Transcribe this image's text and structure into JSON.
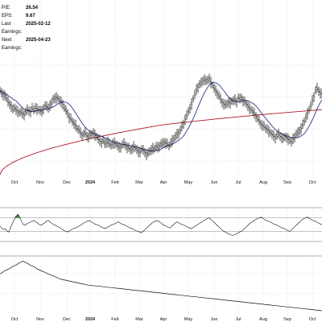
{
  "stats": [
    {
      "label": "P/E:",
      "value": "26.54"
    },
    {
      "label": "EPS:",
      "value": "9.67"
    },
    {
      "label": "Last Earnings:",
      "value": "2025-02-12"
    },
    {
      "label": "Next Earnings:",
      "value": "2025-04-23"
    }
  ],
  "chart_data": {
    "type": "line",
    "panels": [
      "price",
      "oscillator",
      "relative-strength"
    ],
    "x_tick_labels": [
      "Oct",
      "Nov",
      "Dec",
      "2024",
      "Feb",
      "Mar",
      "Apr",
      "May",
      "Jun",
      "Jul",
      "Aug",
      "Sep",
      "Oct"
    ],
    "grid": true,
    "price_panel": {
      "series": [
        {
          "values": [
            55,
            52,
            49,
            50,
            45,
            40,
            38,
            35,
            30,
            33,
            30,
            28,
            26,
            27,
            25,
            24,
            27,
            30,
            29,
            28,
            32,
            30,
            33,
            31,
            30,
            29,
            28,
            32,
            35,
            34,
            33,
            36,
            38,
            44,
            45,
            46,
            45,
            42,
            40,
            38,
            32,
            29,
            26,
            20,
            18,
            15,
            12,
            10,
            5,
            4,
            0,
            -3,
            -2,
            0,
            -4,
            -5,
            -3,
            -2,
            0,
            -3,
            -5,
            -8,
            -10,
            -12,
            -10,
            -14,
            -13,
            -11,
            -15,
            -16,
            -14,
            -13,
            -15,
            -17,
            -19,
            -18,
            -16,
            -14,
            -16,
            -19,
            -20,
            -22,
            -21,
            -18,
            -20,
            -22,
            -25,
            -24,
            -22,
            -23,
            -25,
            -28,
            -27,
            -24,
            -22,
            -20,
            -21,
            -18,
            -19,
            -17,
            -15,
            -14,
            -12,
            -13,
            -15,
            -17,
            -13,
            -10,
            -8,
            -5,
            -2,
            0,
            3,
            8,
            12,
            18,
            22,
            28,
            32,
            38,
            44,
            50,
            56,
            60,
            63,
            65,
            68,
            70,
            67,
            69,
            71,
            66,
            62,
            58,
            55,
            52,
            48,
            44,
            40,
            38,
            36,
            38,
            40,
            39,
            41,
            42,
            43,
            41,
            45,
            44,
            46,
            42,
            40,
            38,
            35,
            32,
            30,
            28,
            25,
            22,
            18,
            15,
            12,
            10,
            8,
            6,
            5,
            2,
            0,
            -2,
            -4,
            -6,
            -4,
            -2,
            -4,
            -6,
            -8,
            -5,
            -6,
            -8,
            -10,
            -12,
            -8,
            -5,
            -2,
            0,
            3,
            6,
            10,
            15,
            20,
            25,
            30,
            35,
            42,
            48,
            55,
            58,
            55,
            52,
            50
          ]
        },
        {
          "values": [
            60,
            58,
            56,
            54,
            52,
            50,
            48,
            46,
            44,
            42,
            40,
            38,
            36,
            34,
            32,
            30,
            29,
            28,
            27,
            26,
            25,
            24,
            23,
            22,
            21,
            20,
            19,
            18,
            17,
            16,
            15,
            14,
            13,
            12,
            11,
            10,
            9,
            8,
            7,
            6,
            5,
            4,
            3,
            2,
            1,
            0,
            -1,
            -2,
            -3,
            -4,
            -4,
            -5,
            -5,
            -6,
            -6,
            -7,
            -7,
            -7,
            -8,
            -8,
            -8,
            -9,
            -9,
            -9,
            -10,
            -10,
            -10,
            -11,
            -11,
            -11,
            -12,
            -12,
            -12,
            -13,
            -13,
            -13,
            -14,
            -14,
            -14,
            -15,
            -15,
            -15,
            -16,
            -16,
            -16,
            -17,
            -17,
            -17,
            -18,
            -18,
            -18,
            -18,
            -19,
            -19,
            -19,
            -19,
            -19,
            -19,
            -20,
            -20,
            -20,
            -20,
            -20,
            -20,
            -20,
            -20,
            -20,
            -20,
            -20,
            -20,
            -20,
            -19,
            -19,
            -19,
            -18,
            -18,
            -18,
            -17,
            -17,
            -16,
            -16,
            -15,
            -14,
            -13,
            -12,
            -11,
            -10,
            -9,
            -8,
            -7,
            -6,
            -5,
            -4,
            -3,
            -2,
            -1,
            0,
            1,
            2,
            3,
            4,
            5,
            6,
            7,
            8,
            9,
            10,
            11,
            12,
            13,
            14,
            15,
            16,
            17,
            18,
            19,
            20,
            21,
            22,
            23,
            24,
            25,
            26,
            27,
            28,
            29,
            30,
            31,
            32,
            33,
            34,
            35,
            36,
            37,
            38,
            39,
            40,
            41,
            42,
            43,
            44,
            45,
            46,
            47,
            48,
            49,
            50,
            51,
            52,
            53,
            54,
            55,
            56,
            57,
            58,
            59,
            60,
            61,
            62
          ]
        }
      ]
    },
    "oscillator_panel": {
      "ylim": [
        0,
        100
      ],
      "reference_lines": [
        30,
        70
      ],
      "values": [
        45,
        40,
        35,
        38,
        30,
        28,
        42,
        55,
        65,
        75,
        80,
        72,
        60,
        50,
        48,
        52,
        55,
        58,
        60,
        62,
        58,
        55,
        50,
        48,
        52,
        55,
        60,
        62,
        58,
        54,
        50,
        48,
        45,
        42,
        40,
        35,
        32,
        30,
        28,
        32,
        35,
        38,
        40,
        42,
        45,
        48,
        52,
        55,
        58,
        60,
        62,
        58,
        55,
        52,
        50,
        48,
        45,
        42,
        40,
        38,
        42,
        45,
        48,
        50,
        52,
        55,
        58,
        55,
        52,
        50,
        48,
        45,
        42,
        40,
        38,
        35,
        32,
        30,
        28,
        26,
        30,
        35,
        40,
        45,
        50,
        55,
        58,
        60,
        62,
        58,
        55,
        50,
        48,
        45,
        42,
        40,
        45,
        50,
        55,
        58,
        55,
        52,
        50,
        48,
        45,
        42,
        40,
        38,
        42,
        45,
        48,
        52,
        55,
        58,
        62,
        65,
        68,
        70,
        65,
        60,
        55,
        50,
        45,
        40,
        35,
        30,
        28,
        25,
        22,
        20,
        18,
        20,
        22,
        25,
        28,
        30,
        35,
        40,
        45,
        50,
        55,
        58,
        62,
        65,
        68,
        70,
        72,
        68,
        65,
        62,
        60,
        58,
        55,
        52,
        50,
        48,
        45,
        42,
        40,
        38,
        35,
        32,
        30,
        35,
        40,
        45,
        50,
        55,
        60,
        65,
        68,
        70,
        72,
        68,
        65,
        62,
        60,
        58,
        55,
        52,
        50
      ]
    },
    "rs_panel": {
      "values": [
        40,
        42,
        45,
        48,
        50,
        52,
        55,
        58,
        60,
        62,
        65,
        68,
        70,
        72,
        70,
        68,
        65,
        62,
        60,
        58,
        55,
        52,
        50,
        48,
        46,
        44,
        42,
        40,
        38,
        36,
        34,
        32,
        30,
        28,
        26,
        25,
        24,
        23,
        22,
        21,
        20,
        19,
        18,
        17,
        16,
        15,
        14,
        13,
        12,
        11,
        10,
        10,
        9,
        9,
        8,
        8,
        7,
        7,
        6,
        6,
        5,
        5,
        4,
        4,
        3,
        3,
        2,
        2,
        1,
        1,
        0,
        0,
        -1,
        -1,
        -2,
        -2,
        -3,
        -3,
        -4,
        -4,
        -5,
        -5,
        -6,
        -6,
        -7,
        -7,
        -8,
        -8,
        -9,
        -9,
        -10,
        -10,
        -11,
        -11,
        -12,
        -12,
        -13,
        -13,
        -14,
        -14,
        -15,
        -15,
        -16,
        -16,
        -17,
        -17,
        -18,
        -18,
        -19,
        -19,
        -20,
        -20,
        -21,
        -21,
        -22,
        -22,
        -23,
        -23,
        -24,
        -24,
        -25,
        -25,
        -26,
        -26,
        -27,
        -27,
        -28,
        -28,
        -29,
        -29,
        -30,
        -30,
        -31,
        -31,
        -32,
        -32,
        -33,
        -33,
        -34,
        -34,
        -35,
        -35,
        -36,
        -36,
        -37,
        -37,
        -38,
        -38,
        -39,
        -39,
        -40,
        -40,
        -41,
        -41,
        -42,
        -42,
        -43,
        -43,
        -44,
        -44,
        -45,
        -45,
        -46,
        -46,
        -47,
        -47,
        -48,
        -48,
        -49,
        -49,
        -50,
        -50,
        -51,
        -51,
        -52,
        -52,
        -53,
        -53,
        -54,
        -54,
        -55,
        -55,
        -56
      ]
    },
    "colors": {
      "price": "#000000",
      "ma_short": "#2b3a8c",
      "ma_long": "#b2182b",
      "oscillator_fill": "#2e7d32",
      "grid": "#cfcfcf"
    }
  }
}
